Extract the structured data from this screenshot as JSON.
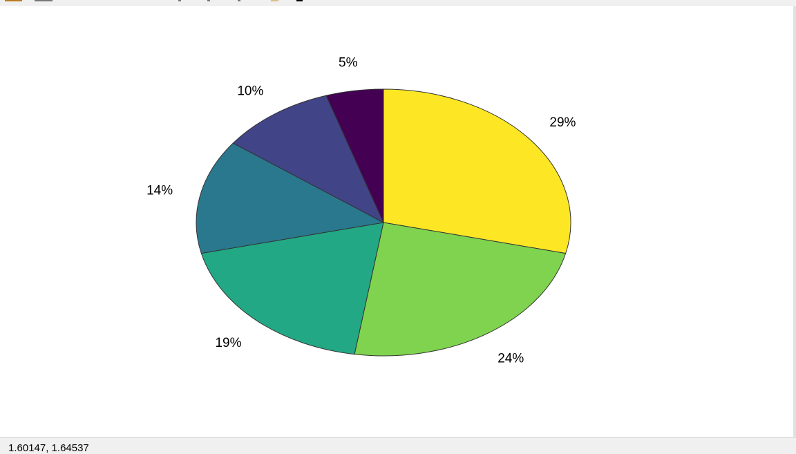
{
  "status": {
    "coordinates": "1.60147, 1.64537"
  },
  "chart_data": {
    "type": "pie",
    "values": [
      29,
      24,
      19,
      14,
      10,
      5
    ],
    "labels": [
      "29%",
      "24%",
      "19%",
      "14%",
      "10%",
      "5%"
    ],
    "colors": [
      "#fde725",
      "#7fd34e",
      "#22a884",
      "#2a788e",
      "#414487",
      "#440154"
    ],
    "start": "top",
    "direction": "clockwise",
    "edge_color": "#333333"
  }
}
